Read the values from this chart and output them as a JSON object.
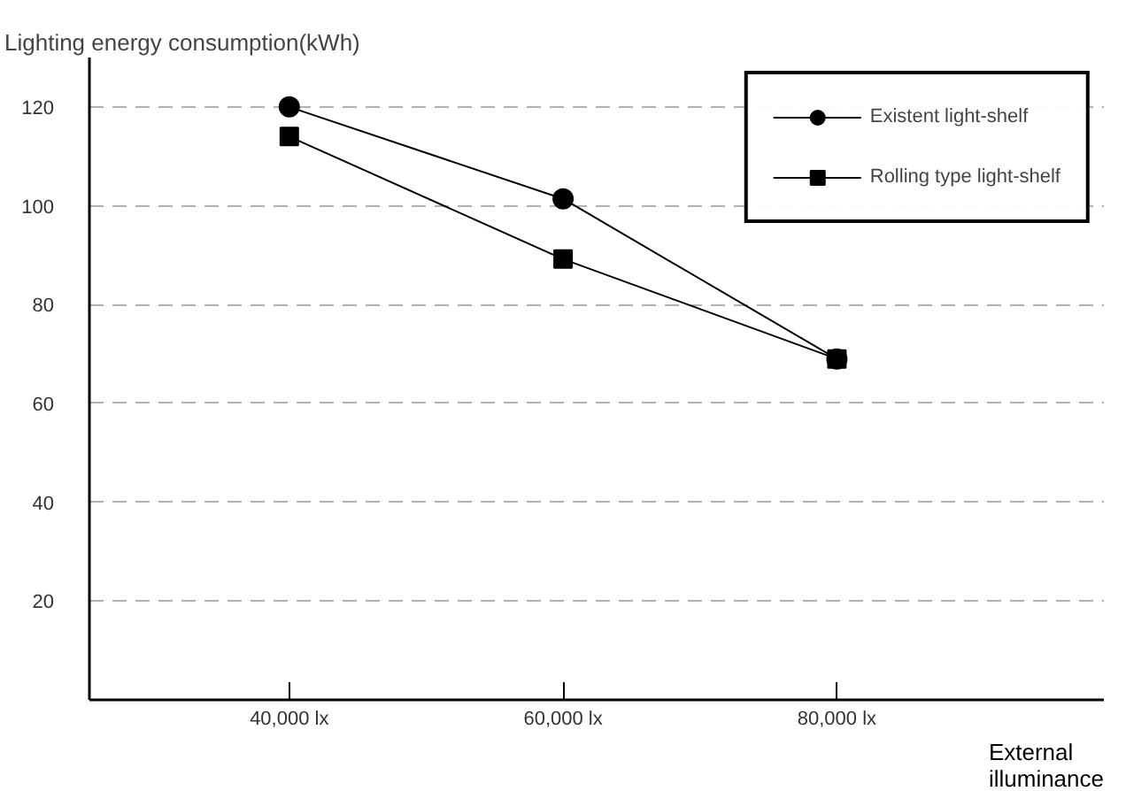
{
  "chart_data": {
    "type": "line",
    "ylabel": "Lighting energy consumption(kWh)",
    "xlabel": "External\nilluminance",
    "x": [
      40000,
      60000,
      80000
    ],
    "series": [
      {
        "name": "Existent light-shelf",
        "color": "#000000",
        "values": [
          120,
          101.4,
          69
        ],
        "marker": "circle"
      },
      {
        "name": "Rolling type light-shelf",
        "color": "#000000",
        "values": [
          114,
          89.2,
          69
        ],
        "marker": "square"
      }
    ],
    "xlim": [
      25400,
      99500
    ],
    "xticks": [
      {
        "value": 40000,
        "label": "40,000 lx"
      },
      {
        "value": 60000,
        "label": "60,000 lx"
      },
      {
        "value": 80000,
        "label": "80,000 lx"
      }
    ],
    "ylim": [
      0,
      130
    ],
    "yticks": [
      20,
      40,
      60,
      80,
      100,
      120
    ],
    "grid": "y",
    "legend": "top right",
    "line_style": "solid"
  }
}
